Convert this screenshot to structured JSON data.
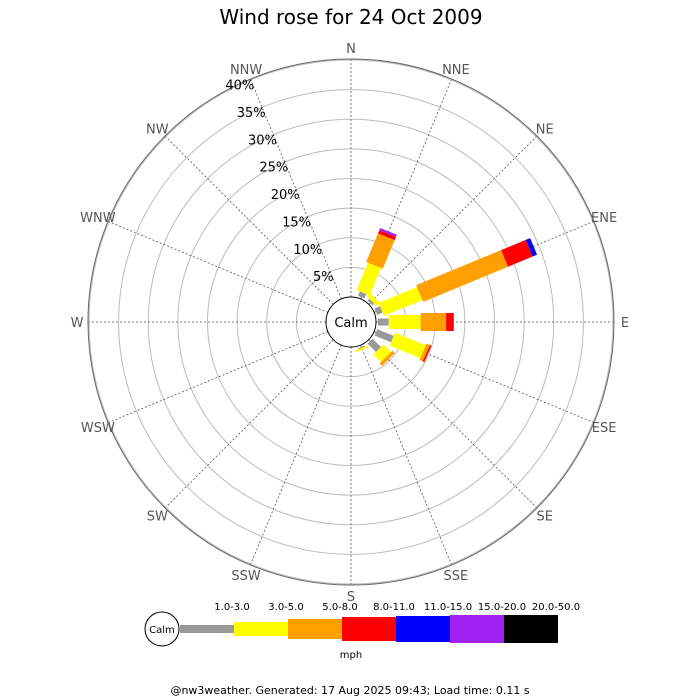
{
  "chart_data": {
    "type": "wind-rose",
    "title": "Wind rose for 24 Oct 2009",
    "directions": [
      "N",
      "NNE",
      "NE",
      "ENE",
      "E",
      "ESE",
      "SE",
      "SSE",
      "S",
      "SSW",
      "SW",
      "WSW",
      "W",
      "WNW",
      "NW",
      "NNW"
    ],
    "ring_labels": [
      "5%",
      "10%",
      "15%",
      "20%",
      "25%",
      "30%",
      "35%",
      "40%"
    ],
    "rmax_percent": 40,
    "calm_label": "Calm",
    "bins": [
      {
        "label": "1.0-3.0",
        "color": "#999999"
      },
      {
        "label": "3.0-5.0",
        "color": "#ffff00"
      },
      {
        "label": "5.0-8.0",
        "color": "#ff9f00"
      },
      {
        "label": "8.0-11.0",
        "color": "#ff0000"
      },
      {
        "label": "11.0-15.0",
        "color": "#0000ff"
      },
      {
        "label": "15.0-20.0",
        "color": "#a020f0"
      },
      {
        "label": "20.0-50.0",
        "color": "#000000"
      }
    ],
    "unit": "mph",
    "series": [
      {
        "direction": "NNE",
        "values": [
          0.8,
          5.0,
          5.2,
          0.6,
          0,
          0.4,
          0
        ]
      },
      {
        "direction": "NE",
        "values": [
          0.4,
          0.8,
          0,
          0,
          0,
          0,
          0
        ]
      },
      {
        "direction": "ENE",
        "values": [
          1.0,
          7.0,
          15.5,
          4.5,
          0.8,
          0,
          0
        ]
      },
      {
        "direction": "E",
        "values": [
          1.8,
          5.4,
          4.3,
          1.3,
          0,
          0,
          0
        ]
      },
      {
        "direction": "ESE",
        "values": [
          3.0,
          5.6,
          0.6,
          0.3,
          0,
          0,
          0
        ]
      },
      {
        "direction": "SE",
        "values": [
          2.0,
          1.8,
          0.6,
          0,
          0,
          0,
          0
        ]
      },
      {
        "direction": "SSE",
        "values": [
          0.2,
          0.3,
          0,
          0,
          0,
          0,
          0
        ]
      }
    ]
  },
  "footer": "@nw3weather. Generated: 17 Aug 2025 09:43; Load time: 0.11 s"
}
